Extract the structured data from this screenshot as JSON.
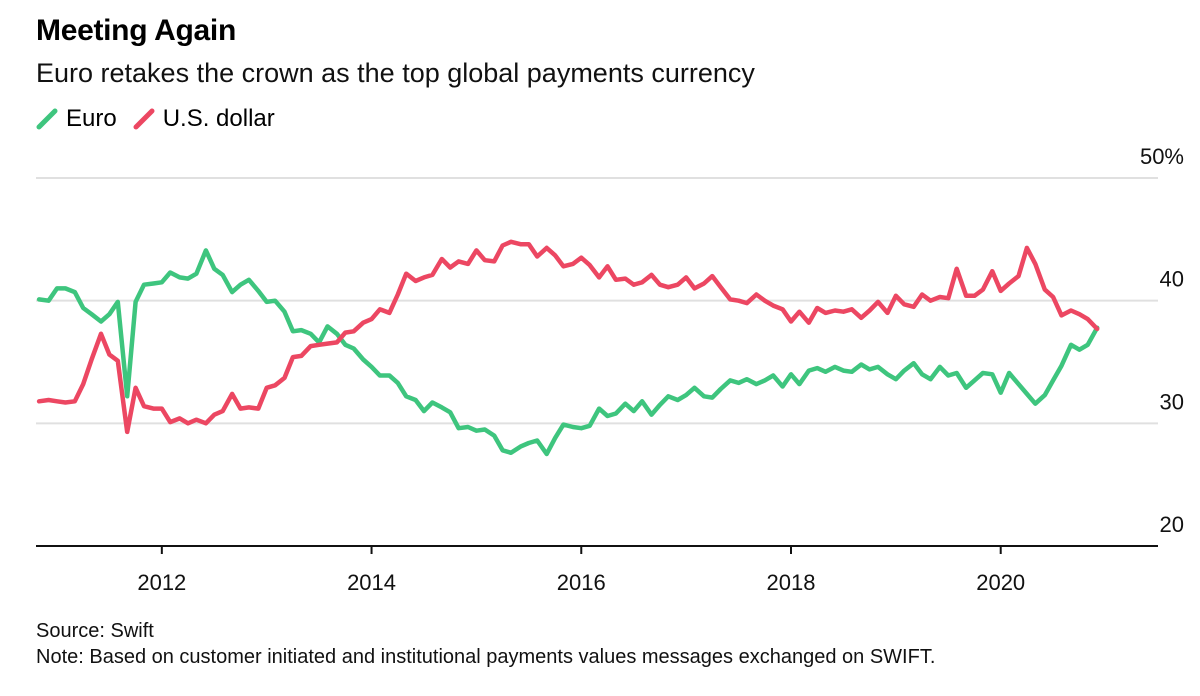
{
  "title": "Meeting Again",
  "subtitle": "Euro retakes the crown as the top global payments currency",
  "colors": {
    "euro": "#3ec57e",
    "usd": "#ec4762",
    "grid": "#e0e0e0",
    "axis": "#111111"
  },
  "footer": {
    "source": "Source: Swift",
    "note": "Note: Based on customer initiated and institutional payments values messages exchanged on SWIFT."
  },
  "chart_data": {
    "type": "line",
    "title": "Meeting Again",
    "subtitle": "Euro retakes the crown as the top global payments currency",
    "xlabel": "",
    "ylabel": "",
    "ylim": [
      20,
      50
    ],
    "xlim": [
      2010.8,
      2021.5
    ],
    "y_ticks": [
      20,
      30,
      40,
      50
    ],
    "y_tick_labels": [
      "20",
      "30",
      "40",
      "50%"
    ],
    "x_ticks": [
      2012,
      2014,
      2016,
      2018,
      2020
    ],
    "x_tick_labels": [
      "2012",
      "2014",
      "2016",
      "2018",
      "2020"
    ],
    "grid": true,
    "legend_position": "top-left",
    "series": [
      {
        "name": "Euro",
        "color": "#3ec57e",
        "points": [
          [
            2010.83,
            40.1
          ],
          [
            2010.92,
            40.0
          ],
          [
            2011.0,
            41.0
          ],
          [
            2011.08,
            41.0
          ],
          [
            2011.17,
            40.7
          ],
          [
            2011.25,
            39.4
          ],
          [
            2011.33,
            38.9
          ],
          [
            2011.42,
            38.3
          ],
          [
            2011.5,
            38.9
          ],
          [
            2011.58,
            39.9
          ],
          [
            2011.67,
            32.2
          ],
          [
            2011.75,
            39.9
          ],
          [
            2011.83,
            41.3
          ],
          [
            2011.92,
            41.4
          ],
          [
            2012.0,
            41.5
          ],
          [
            2012.08,
            42.3
          ],
          [
            2012.17,
            41.9
          ],
          [
            2012.25,
            41.8
          ],
          [
            2012.33,
            42.2
          ],
          [
            2012.42,
            44.1
          ],
          [
            2012.5,
            42.6
          ],
          [
            2012.58,
            42.1
          ],
          [
            2012.67,
            40.7
          ],
          [
            2012.75,
            41.3
          ],
          [
            2012.83,
            41.7
          ],
          [
            2012.92,
            40.8
          ],
          [
            2013.0,
            39.9
          ],
          [
            2013.08,
            40.0
          ],
          [
            2013.17,
            39.1
          ],
          [
            2013.25,
            37.5
          ],
          [
            2013.33,
            37.6
          ],
          [
            2013.42,
            37.3
          ],
          [
            2013.5,
            36.6
          ],
          [
            2013.58,
            37.9
          ],
          [
            2013.67,
            37.3
          ],
          [
            2013.75,
            36.4
          ],
          [
            2013.83,
            36.1
          ],
          [
            2013.92,
            35.2
          ],
          [
            2014.0,
            34.6
          ],
          [
            2014.08,
            33.9
          ],
          [
            2014.17,
            33.9
          ],
          [
            2014.25,
            33.3
          ],
          [
            2014.33,
            32.2
          ],
          [
            2014.42,
            31.9
          ],
          [
            2014.5,
            31.0
          ],
          [
            2014.58,
            31.7
          ],
          [
            2014.67,
            31.3
          ],
          [
            2014.75,
            30.9
          ],
          [
            2014.83,
            29.6
          ],
          [
            2014.92,
            29.7
          ],
          [
            2015.0,
            29.4
          ],
          [
            2015.08,
            29.5
          ],
          [
            2015.17,
            29.0
          ],
          [
            2015.25,
            27.8
          ],
          [
            2015.33,
            27.6
          ],
          [
            2015.42,
            28.1
          ],
          [
            2015.5,
            28.4
          ],
          [
            2015.58,
            28.6
          ],
          [
            2015.67,
            27.5
          ],
          [
            2015.75,
            28.8
          ],
          [
            2015.83,
            29.9
          ],
          [
            2015.92,
            29.7
          ],
          [
            2016.0,
            29.6
          ],
          [
            2016.08,
            29.8
          ],
          [
            2016.17,
            31.2
          ],
          [
            2016.25,
            30.6
          ],
          [
            2016.33,
            30.8
          ],
          [
            2016.42,
            31.6
          ],
          [
            2016.5,
            31.0
          ],
          [
            2016.58,
            31.8
          ],
          [
            2016.67,
            30.7
          ],
          [
            2016.75,
            31.5
          ],
          [
            2016.83,
            32.2
          ],
          [
            2016.92,
            31.9
          ],
          [
            2017.0,
            32.3
          ],
          [
            2017.08,
            32.9
          ],
          [
            2017.17,
            32.2
          ],
          [
            2017.25,
            32.1
          ],
          [
            2017.33,
            32.8
          ],
          [
            2017.42,
            33.5
          ],
          [
            2017.5,
            33.3
          ],
          [
            2017.58,
            33.6
          ],
          [
            2017.67,
            33.2
          ],
          [
            2017.75,
            33.5
          ],
          [
            2017.83,
            33.9
          ],
          [
            2017.92,
            33.0
          ],
          [
            2018.0,
            34.0
          ],
          [
            2018.08,
            33.2
          ],
          [
            2018.17,
            34.3
          ],
          [
            2018.25,
            34.5
          ],
          [
            2018.33,
            34.2
          ],
          [
            2018.42,
            34.6
          ],
          [
            2018.5,
            34.3
          ],
          [
            2018.58,
            34.2
          ],
          [
            2018.67,
            34.8
          ],
          [
            2018.75,
            34.4
          ],
          [
            2018.83,
            34.6
          ],
          [
            2018.92,
            34.0
          ],
          [
            2019.0,
            33.6
          ],
          [
            2019.08,
            34.3
          ],
          [
            2019.17,
            34.9
          ],
          [
            2019.25,
            34.0
          ],
          [
            2019.33,
            33.6
          ],
          [
            2019.42,
            34.6
          ],
          [
            2019.5,
            33.9
          ],
          [
            2019.58,
            34.1
          ],
          [
            2019.67,
            32.9
          ],
          [
            2019.75,
            33.5
          ],
          [
            2019.83,
            34.1
          ],
          [
            2019.92,
            34.0
          ],
          [
            2020.0,
            32.5
          ],
          [
            2020.08,
            34.1
          ],
          [
            2020.17,
            33.2
          ],
          [
            2020.25,
            32.4
          ],
          [
            2020.33,
            31.6
          ],
          [
            2020.42,
            32.3
          ],
          [
            2020.5,
            33.5
          ],
          [
            2020.58,
            34.7
          ],
          [
            2020.67,
            36.4
          ],
          [
            2020.75,
            36.0
          ],
          [
            2020.83,
            36.4
          ],
          [
            2020.92,
            37.8
          ]
        ]
      },
      {
        "name": "U.S. dollar",
        "color": "#ec4762",
        "points": [
          [
            2010.83,
            31.8
          ],
          [
            2010.92,
            31.9
          ],
          [
            2011.0,
            31.8
          ],
          [
            2011.08,
            31.7
          ],
          [
            2011.17,
            31.8
          ],
          [
            2011.25,
            33.2
          ],
          [
            2011.33,
            35.2
          ],
          [
            2011.42,
            37.3
          ],
          [
            2011.5,
            35.6
          ],
          [
            2011.58,
            35.1
          ],
          [
            2011.67,
            29.3
          ],
          [
            2011.75,
            32.9
          ],
          [
            2011.83,
            31.4
          ],
          [
            2011.92,
            31.2
          ],
          [
            2012.0,
            31.2
          ],
          [
            2012.08,
            30.1
          ],
          [
            2012.17,
            30.4
          ],
          [
            2012.25,
            30.0
          ],
          [
            2012.33,
            30.3
          ],
          [
            2012.42,
            30.0
          ],
          [
            2012.5,
            30.7
          ],
          [
            2012.58,
            31.0
          ],
          [
            2012.67,
            32.4
          ],
          [
            2012.75,
            31.2
          ],
          [
            2012.83,
            31.3
          ],
          [
            2012.92,
            31.2
          ],
          [
            2013.0,
            32.9
          ],
          [
            2013.08,
            33.1
          ],
          [
            2013.17,
            33.7
          ],
          [
            2013.25,
            35.4
          ],
          [
            2013.33,
            35.5
          ],
          [
            2013.42,
            36.3
          ],
          [
            2013.5,
            36.4
          ],
          [
            2013.58,
            36.5
          ],
          [
            2013.67,
            36.6
          ],
          [
            2013.75,
            37.4
          ],
          [
            2013.83,
            37.5
          ],
          [
            2013.92,
            38.2
          ],
          [
            2014.0,
            38.5
          ],
          [
            2014.08,
            39.3
          ],
          [
            2014.17,
            39.0
          ],
          [
            2014.25,
            40.5
          ],
          [
            2014.33,
            42.2
          ],
          [
            2014.42,
            41.6
          ],
          [
            2014.5,
            41.9
          ],
          [
            2014.58,
            42.1
          ],
          [
            2014.67,
            43.4
          ],
          [
            2014.75,
            42.7
          ],
          [
            2014.83,
            43.2
          ],
          [
            2014.92,
            43.0
          ],
          [
            2015.0,
            44.1
          ],
          [
            2015.08,
            43.3
          ],
          [
            2015.17,
            43.2
          ],
          [
            2015.25,
            44.5
          ],
          [
            2015.33,
            44.8
          ],
          [
            2015.42,
            44.6
          ],
          [
            2015.5,
            44.6
          ],
          [
            2015.58,
            43.6
          ],
          [
            2015.67,
            44.3
          ],
          [
            2015.75,
            43.7
          ],
          [
            2015.83,
            42.8
          ],
          [
            2015.92,
            43.0
          ],
          [
            2016.0,
            43.5
          ],
          [
            2016.08,
            42.9
          ],
          [
            2016.17,
            41.9
          ],
          [
            2016.25,
            42.8
          ],
          [
            2016.33,
            41.7
          ],
          [
            2016.42,
            41.8
          ],
          [
            2016.5,
            41.3
          ],
          [
            2016.58,
            41.5
          ],
          [
            2016.67,
            42.1
          ],
          [
            2016.75,
            41.3
          ],
          [
            2016.83,
            41.1
          ],
          [
            2016.92,
            41.3
          ],
          [
            2017.0,
            41.9
          ],
          [
            2017.08,
            41.0
          ],
          [
            2017.17,
            41.4
          ],
          [
            2017.25,
            42.0
          ],
          [
            2017.33,
            41.1
          ],
          [
            2017.42,
            40.1
          ],
          [
            2017.5,
            40.0
          ],
          [
            2017.58,
            39.8
          ],
          [
            2017.67,
            40.5
          ],
          [
            2017.75,
            40.0
          ],
          [
            2017.83,
            39.6
          ],
          [
            2017.92,
            39.3
          ],
          [
            2018.0,
            38.3
          ],
          [
            2018.08,
            39.1
          ],
          [
            2018.17,
            38.2
          ],
          [
            2018.25,
            39.4
          ],
          [
            2018.33,
            39.0
          ],
          [
            2018.42,
            39.2
          ],
          [
            2018.5,
            39.1
          ],
          [
            2018.58,
            39.3
          ],
          [
            2018.67,
            38.6
          ],
          [
            2018.75,
            39.2
          ],
          [
            2018.83,
            39.9
          ],
          [
            2018.92,
            39.0
          ],
          [
            2019.0,
            40.4
          ],
          [
            2019.08,
            39.7
          ],
          [
            2019.17,
            39.5
          ],
          [
            2019.25,
            40.5
          ],
          [
            2019.33,
            40.0
          ],
          [
            2019.42,
            40.3
          ],
          [
            2019.5,
            40.2
          ],
          [
            2019.58,
            42.6
          ],
          [
            2019.67,
            40.4
          ],
          [
            2019.75,
            40.4
          ],
          [
            2019.83,
            40.9
          ],
          [
            2019.92,
            42.4
          ],
          [
            2020.0,
            40.8
          ],
          [
            2020.08,
            41.4
          ],
          [
            2020.17,
            42.0
          ],
          [
            2020.25,
            44.3
          ],
          [
            2020.33,
            43.0
          ],
          [
            2020.42,
            40.9
          ],
          [
            2020.5,
            40.3
          ],
          [
            2020.58,
            38.8
          ],
          [
            2020.67,
            39.2
          ],
          [
            2020.75,
            38.9
          ],
          [
            2020.83,
            38.5
          ],
          [
            2020.92,
            37.7
          ]
        ]
      }
    ]
  }
}
